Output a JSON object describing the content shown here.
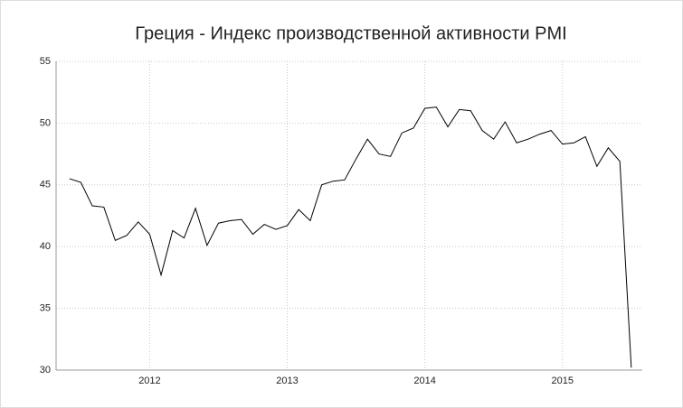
{
  "chart_data": {
    "type": "line",
    "title": "Греция - Индекс производственной активности PMI",
    "x": [
      2011.417,
      2011.5,
      2011.583,
      2011.667,
      2011.75,
      2011.833,
      2011.917,
      2012,
      2012.083,
      2012.167,
      2012.25,
      2012.333,
      2012.417,
      2012.5,
      2012.583,
      2012.667,
      2012.75,
      2012.833,
      2012.917,
      2013,
      2013.083,
      2013.167,
      2013.25,
      2013.333,
      2013.417,
      2013.5,
      2013.583,
      2013.667,
      2013.75,
      2013.833,
      2013.917,
      2014,
      2014.083,
      2014.167,
      2014.25,
      2014.333,
      2014.417,
      2014.5,
      2014.583,
      2014.667,
      2014.75,
      2014.833,
      2014.917,
      2015,
      2015.083,
      2015.167,
      2015.25,
      2015.333,
      2015.417,
      2015.5
    ],
    "series": [
      {
        "color": "#000000",
        "values": [
          45.5,
          45.2,
          43.3,
          43.2,
          40.5,
          40.9,
          42.0,
          41.0,
          37.7,
          41.3,
          40.7,
          43.1,
          40.1,
          41.9,
          42.1,
          42.2,
          41.0,
          41.8,
          41.4,
          41.7,
          43.0,
          42.1,
          45.0,
          45.3,
          45.4,
          47.1,
          48.7,
          47.5,
          47.3,
          49.2,
          49.6,
          51.2,
          51.3,
          49.7,
          51.1,
          51.0,
          49.4,
          48.7,
          50.1,
          48.4,
          48.7,
          49.1,
          49.4,
          48.3,
          48.4,
          48.9,
          46.5,
          48.0,
          46.9,
          30.2
        ]
      }
    ],
    "xlim": [
      2011.32,
      2015.58
    ],
    "xticks": [
      2012,
      2013,
      2014,
      2015
    ],
    "ylim": [
      30,
      55
    ],
    "yticks": [
      30,
      35,
      40,
      45,
      50,
      55
    ],
    "grid": true
  }
}
